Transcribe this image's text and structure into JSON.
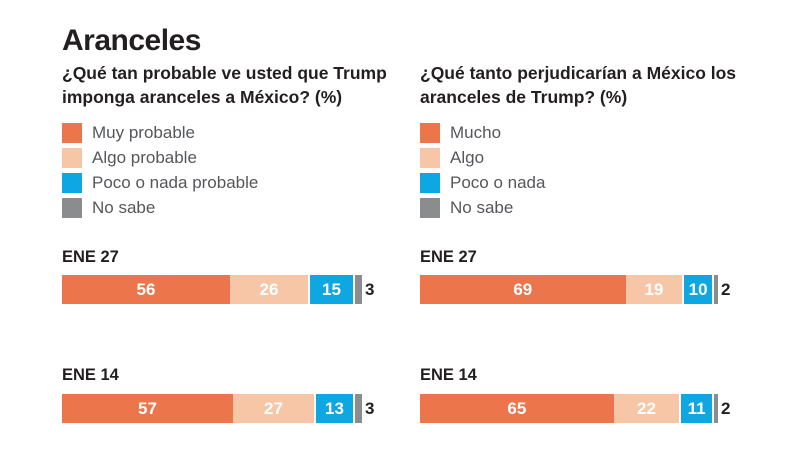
{
  "title": "Aranceles",
  "segment_colors": [
    "#ED754C",
    "#F6C6A7",
    "#0FA7E1",
    "#8A8C8E"
  ],
  "text_colors": {
    "heading": "#231F20",
    "legend_label": "#55575B"
  },
  "charts": [
    {
      "question": "¿Qué tan probable ve usted que Trump imponga aranceles a México? (%)",
      "legend": [
        "Muy probable",
        "Algo probable",
        "Poco o nada probable",
        "No sabe"
      ],
      "rows": [
        {
          "label": "ENE 27",
          "values": [
            56,
            26,
            15,
            3
          ]
        },
        {
          "label": "ENE 14",
          "values": [
            57,
            27,
            13,
            3
          ]
        }
      ]
    },
    {
      "question": "¿Qué tanto perjudicarían a México los aranceles de Trump? (%)",
      "legend": [
        "Mucho",
        "Algo",
        "Poco o nada",
        "No sabe"
      ],
      "rows": [
        {
          "label": "ENE 27",
          "values": [
            69,
            19,
            10,
            2
          ]
        },
        {
          "label": "ENE 14",
          "values": [
            65,
            22,
            11,
            2
          ]
        }
      ]
    }
  ],
  "chart_data": [
    {
      "type": "bar",
      "orientation": "horizontal",
      "stacked": true,
      "title": "¿Qué tan probable ve usted que Trump imponga aranceles a México? (%)",
      "categories": [
        "ENE 27",
        "ENE 14"
      ],
      "series": [
        {
          "name": "Muy probable",
          "values": [
            56,
            57
          ],
          "color": "#ED754C"
        },
        {
          "name": "Algo probable",
          "values": [
            26,
            27
          ],
          "color": "#F6C6A7"
        },
        {
          "name": "Poco o nada probable",
          "values": [
            15,
            13
          ],
          "color": "#0FA7E1"
        },
        {
          "name": "No sabe",
          "values": [
            3,
            3
          ],
          "color": "#8A8C8E"
        }
      ],
      "xlim": [
        0,
        100
      ],
      "unit": "%",
      "grid": false,
      "legend_position": "top-left",
      "value_labels": "inside-except-last-outside"
    },
    {
      "type": "bar",
      "orientation": "horizontal",
      "stacked": true,
      "title": "¿Qué tanto perjudicarían a México los aranceles de Trump? (%)",
      "categories": [
        "ENE 27",
        "ENE 14"
      ],
      "series": [
        {
          "name": "Mucho",
          "values": [
            69,
            65
          ],
          "color": "#ED754C"
        },
        {
          "name": "Algo",
          "values": [
            19,
            22
          ],
          "color": "#F6C6A7"
        },
        {
          "name": "Poco o nada",
          "values": [
            10,
            11
          ],
          "color": "#0FA7E1"
        },
        {
          "name": "No sabe",
          "values": [
            2,
            2
          ],
          "color": "#8A8C8E"
        }
      ],
      "xlim": [
        0,
        100
      ],
      "unit": "%",
      "grid": false,
      "legend_position": "top-left",
      "value_labels": "inside-except-last-outside"
    }
  ]
}
